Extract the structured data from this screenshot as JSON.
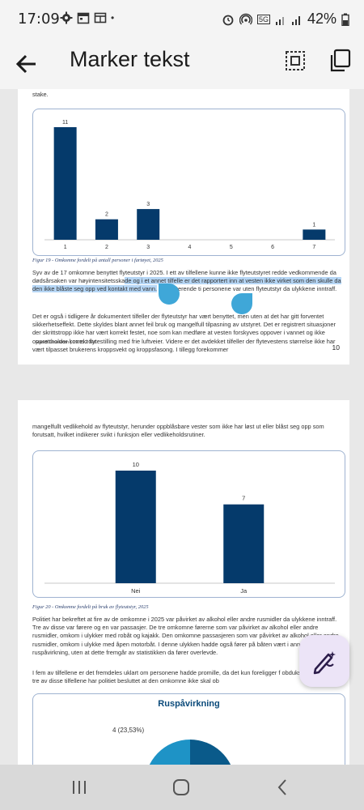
{
  "status_bar": {
    "time": "17:09",
    "battery": "42%",
    "net_badge": "5G",
    "dot": "•"
  },
  "app_bar": {
    "title": "Marker tekst"
  },
  "page1": {
    "top_text": "stake.",
    "chart": {
      "type": "bar",
      "categories": [
        "1",
        "2",
        "3",
        "4",
        "5",
        "6",
        "7"
      ],
      "values": [
        11,
        2,
        3,
        0,
        0,
        0,
        1
      ],
      "value_labels": [
        "11",
        "2",
        "3",
        "",
        "",
        "",
        "1"
      ],
      "ylim": [
        0,
        11
      ],
      "color": "#053a6b"
    },
    "caption": "Figur 19 - Omkomne fordelt på antall personer i fartøyet, 2025",
    "para1_before": "Syv av de 17 omkomne benyttet flyteutstyr i 2025. I ett av tilfellene kunne ikke flyteutstyret redde vedkommende da dødsårsaken var høyintensitetsska",
    "para1_highlight": "de og i et annet tilfelle er det rapportert inn at vesten ikke virket som den skulle da den ikke blåste seg opp ved kontakt med vann.",
    "para1_after": " De resterende ti personene var uten flyteutstyr da ulykkene inntraff.",
    "para2": "Det er også i tidligere år dokumentert tilfeller der flyteutstyr har vært benyttet, men uten at det har gitt forventet sikkerhetseffekt. Dette skyldes blant annet feil bruk og mangelfull tilpasning av utstyret. Det er registrert situasjoner der skrittstropp ikke har vært korrekt festet, noe som kan medføre at vesten forskyves oppover i vannet og ikke opprettholder korrekt flytestilling med frie luftveier. Videre er det avdekket tilfeller der flytevestens størrelse ikke har vært tilpasset brukerens kroppsvekt og kroppsfasong. I tillegg forekommer",
    "footer": "Randi Liniekken | 09.01.2026",
    "page_number": "10"
  },
  "page2": {
    "top_text": "mangelfullt vedlikehold av flyteutstyr, herunder oppblåsbare vester som ikke har løst ut eller blåst seg opp som forutsatt, hvilket indikerer svikt i funksjon eller vedlikeholdsrutiner.",
    "chart": {
      "type": "bar",
      "categories": [
        "Nei",
        "Ja"
      ],
      "values": [
        10,
        7
      ],
      "ylim": [
        0,
        10
      ],
      "color": "#053a6b"
    },
    "caption": "Figur 20 - Omkomne fordelt på bruk av flyteutstyr, 2025",
    "para1": "Politiet har bekreftet at fire av de omkomne i 2025 var påvirket av alkohol eller andre rusmidler da ulykkene inntraff. Tre av disse var førere og en var passasjer. De tre omkomne førerne som var påvirket av alkohol eller andre rusmidler, omkom i ulykker med robåt og kajakk. Den omkomne passasjeren som var påvirket av alkohol eller andre rusmidler, omkom i ulykke med åpen motorbåt. I denne ulykken hadde også fører på båten vært i annen ruspåvirkning, uten at dette fremgår av statistikken da fører overlevde.",
    "para2": "I fem av tilfellene er det fremdeles uklart om personene hadde promille, da det kun foreligger f obduksjonsrapporter. I tre av disse tilfellene har politiet besluttet at den omkomne ikke skal ob",
    "pie": {
      "title": "Ruspåvirkning",
      "label": "4 (23,53%)",
      "slices": [
        {
          "value": 4,
          "color": "#0a5a8a"
        },
        {
          "value": 13,
          "color": "#1e93c6"
        }
      ]
    }
  },
  "icons": {
    "back": "arrow-left-icon",
    "select_all": "select-all-icon",
    "copy": "copy-icon",
    "fab": "edit-sparkle-icon"
  }
}
